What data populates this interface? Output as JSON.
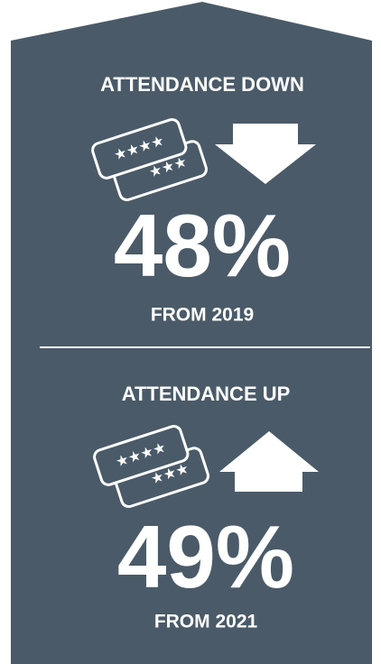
{
  "sections": [
    {
      "heading": "ATTENDANCE DOWN",
      "figure": "48%",
      "caption": "FROM 2019"
    },
    {
      "heading": "ATTENDANCE UP",
      "figure": "49%",
      "caption": "FROM 2021"
    }
  ]
}
